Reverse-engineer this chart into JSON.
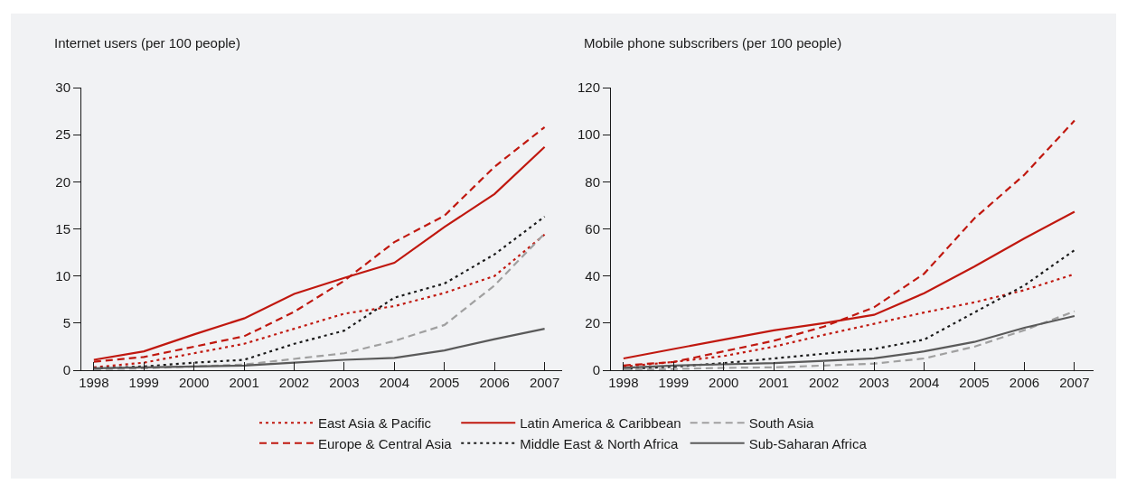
{
  "chart_data": [
    {
      "type": "line",
      "ylabel": "Internet users (per 100 people)",
      "x": [
        1998,
        1999,
        2000,
        2001,
        2002,
        2003,
        2004,
        2005,
        2006,
        2007
      ],
      "xlim": [
        1997.75,
        2007.35
      ],
      "xticks": [
        1998,
        1999,
        2000,
        2001,
        2002,
        2003,
        2004,
        2005,
        2006,
        2007
      ],
      "ylim": [
        0,
        30
      ],
      "yticks": [
        0,
        5,
        10,
        15,
        20,
        25,
        30
      ],
      "grid": false,
      "legend": "bottom",
      "marker": "none",
      "series": [
        {
          "name": "East Asia & Pacific",
          "color": "#c0180f",
          "line_style": "dotted",
          "values": [
            0.3,
            0.8,
            1.8,
            2.8,
            4.4,
            6.0,
            6.8,
            8.2,
            10.0,
            14.4
          ]
        },
        {
          "name": "Europe & Central Asia",
          "color": "#c0180f",
          "line_style": "dashed",
          "values": [
            0.9,
            1.4,
            2.5,
            3.6,
            6.2,
            9.5,
            13.6,
            16.4,
            21.6,
            25.8
          ]
        },
        {
          "name": "Latin America & Caribbean",
          "color": "#c0180f",
          "line_style": "solid",
          "values": [
            1.1,
            2.0,
            3.8,
            5.5,
            8.1,
            9.8,
            11.4,
            15.2,
            18.7,
            23.7
          ]
        },
        {
          "name": "Middle East & North Africa",
          "color": "#1a1a1a",
          "line_style": "dotted",
          "values": [
            0.2,
            0.4,
            0.8,
            1.1,
            2.8,
            4.2,
            7.7,
            9.2,
            12.3,
            16.3
          ]
        },
        {
          "name": "South Asia",
          "color": "#a0a0a0",
          "line_style": "dashed",
          "values": [
            0.1,
            0.2,
            0.4,
            0.6,
            1.2,
            1.8,
            3.1,
            4.8,
            9.0,
            14.5
          ]
        },
        {
          "name": "Sub-Saharan Africa",
          "color": "#5a5a5a",
          "line_style": "solid",
          "values": [
            0.2,
            0.3,
            0.4,
            0.5,
            0.8,
            1.1,
            1.3,
            2.1,
            3.3,
            4.4
          ]
        }
      ]
    },
    {
      "type": "line",
      "ylabel": "Mobile phone subscribers (per 100 people)",
      "x": [
        1998,
        1999,
        2000,
        2001,
        2002,
        2003,
        2004,
        2005,
        2006,
        2007
      ],
      "xlim": [
        1997.75,
        2007.38
      ],
      "xticks": [
        1998,
        1999,
        2000,
        2001,
        2002,
        2003,
        2004,
        2005,
        2006,
        2007
      ],
      "ylim": [
        0,
        120
      ],
      "yticks": [
        0,
        20,
        40,
        60,
        80,
        100,
        120
      ],
      "grid": false,
      "marker": "none",
      "series": [
        {
          "color": "#c0180f",
          "line_style": "dotted",
          "values": [
            1.5,
            3.5,
            6,
            10,
            15,
            19.7,
            24.5,
            28.8,
            34,
            40.8
          ]
        },
        {
          "color": "#c0180f",
          "line_style": "dashed",
          "values": [
            2,
            3.5,
            8,
            12.5,
            18.5,
            26.7,
            41,
            64.4,
            83,
            106
          ]
        },
        {
          "color": "#c0180f",
          "line_style": "solid",
          "values": [
            5,
            9,
            13,
            16.9,
            20,
            23.5,
            32.7,
            44,
            56,
            67.3
          ]
        },
        {
          "color": "#1a1a1a",
          "line_style": "dotted",
          "values": [
            0.5,
            1.5,
            3,
            5,
            7,
            9,
            13,
            24.5,
            36,
            51
          ]
        },
        {
          "color": "#a0a0a0",
          "line_style": "dashed",
          "values": [
            0.3,
            0.5,
            1,
            1.2,
            2,
            2.8,
            5,
            10,
            17,
            25
          ]
        },
        {
          "color": "#5a5a5a",
          "line_style": "solid",
          "values": [
            1,
            2,
            2.5,
            3,
            4,
            5,
            8,
            12,
            18,
            23
          ]
        }
      ]
    }
  ]
}
